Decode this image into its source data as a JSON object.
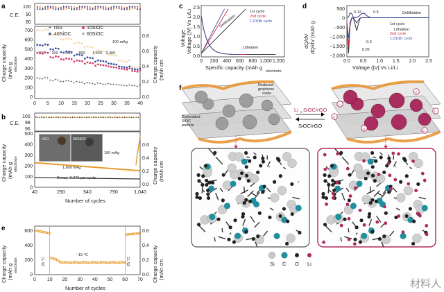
{
  "panels": {
    "a": {
      "letter": "a",
      "ce_label": "C.E.",
      "ce_ticks": [
        "100",
        "90",
        "80"
      ],
      "cap_label_1": "Charge capacity",
      "cap_label_2": "(mAh g",
      "cap_label_3": "electrode",
      "right_label_1": "Charge capacity",
      "right_label_2": "(mAh cm",
      "left_ticks": [
        "700",
        "600",
        "500",
        "400",
        "300",
        "200",
        "100",
        "0"
      ],
      "right_ticks": [
        "0.8",
        "0.6",
        "0.4",
        "0.2",
        "0.0"
      ],
      "x_ticks": [
        "0",
        "5",
        "10",
        "15",
        "20",
        "25",
        "30",
        "35",
        "40"
      ],
      "legend": [
        "rGo",
        "10SiOC",
        "40SiOC",
        "60SiOC"
      ],
      "rates": [
        "100",
        "200",
        "400",
        "800",
        "1,600",
        "2,400"
      ],
      "rate_unit": "100 mAg",
      "colors": {
        "rGo": "#333333",
        "10SiOC": "#d43b6b",
        "40SiOC": "#3a4fa0",
        "60SiOC": "#e89a2c"
      }
    },
    "b": {
      "letter": "b",
      "ce_label": "C.E.",
      "ce_ticks": [
        "100",
        "98",
        "96"
      ],
      "left_ticks": [
        "500",
        "400",
        "300",
        "200",
        "100",
        "0"
      ],
      "right_ticks": [
        "0.6",
        "0.4",
        "0.2",
        "0.0"
      ],
      "x_ticks": [
        "40",
        "290",
        "540",
        "790",
        "1,040"
      ],
      "xlabel": "Number of cycles",
      "inset_left": "rGO",
      "inset_right": "60SiOC",
      "rate1": "100 mAg",
      "rate2": "1,600 mAg",
      "decay": "Decay–0.075 per cycle"
    },
    "c": {
      "letter": "c",
      "ylabel": "Voltage (|V| Vs Li/Li",
      "xlabel": "Specific capacity (mAh g",
      "xlabel_sub": "electrode",
      "y_ticks": [
        "2.5",
        "2.0",
        "1.5",
        "1.0",
        "0.5",
        "0.0"
      ],
      "x_ticks": [
        "0",
        "200",
        "400",
        "600",
        "800",
        "1,000",
        "1,200"
      ],
      "delith": "Delithiation",
      "lith": "Lithiation",
      "cycles": [
        "1st cycle",
        "2nd cycle",
        "1,010th cycle"
      ]
    },
    "d": {
      "letter": "d",
      "ylabel": "dQ/dV (mAh g",
      "xlabel": "Voltage (|V| Vs Li/Li",
      "y_ticks": [
        "500",
        "0",
        "–500",
        "–1,000",
        "–1,500",
        "–2,000"
      ],
      "x_ticks": [
        "0.0",
        "0.5",
        "1.0",
        "1.5",
        "2.0",
        "2.5"
      ],
      "delith": "Delithiation",
      "lith": "Lithiation",
      "peaks": [
        "0.12",
        "0.5",
        "0.3",
        "0.05"
      ],
      "cycles": [
        "1st cycle",
        "2nd cycle",
        "1,010th cycle"
      ]
    },
    "e": {
      "letter": "e",
      "left_ticks": [
        "600",
        "400",
        "200",
        "0"
      ],
      "right_ticks": [
        "0.6",
        "0.4",
        "0.2",
        "0.0"
      ],
      "x_ticks": [
        "0",
        "10",
        "20",
        "30",
        "40",
        "50",
        "60",
        "70"
      ],
      "xlabel": "Number of cycles",
      "temp1": "25 °C",
      "temp2": "–15 °C",
      "temp3": "25 °C"
    },
    "f": {
      "letter": "f",
      "rgo_label": "Reduced graphene oxide",
      "siOC_label": "Embedded SiOC particle",
      "reaction_top": "Li",
      "reaction_sub_mid": "SiOC/rGO",
      "reaction_bottom": "SiOC/rGO",
      "li_ion": "Li",
      "legend": [
        "Si",
        "C",
        "O",
        "Li"
      ],
      "legend_colors": [
        "#c8c8c8",
        "#1f8fa0",
        "#222222",
        "#b0285f"
      ]
    }
  },
  "watermark": "材料人"
}
